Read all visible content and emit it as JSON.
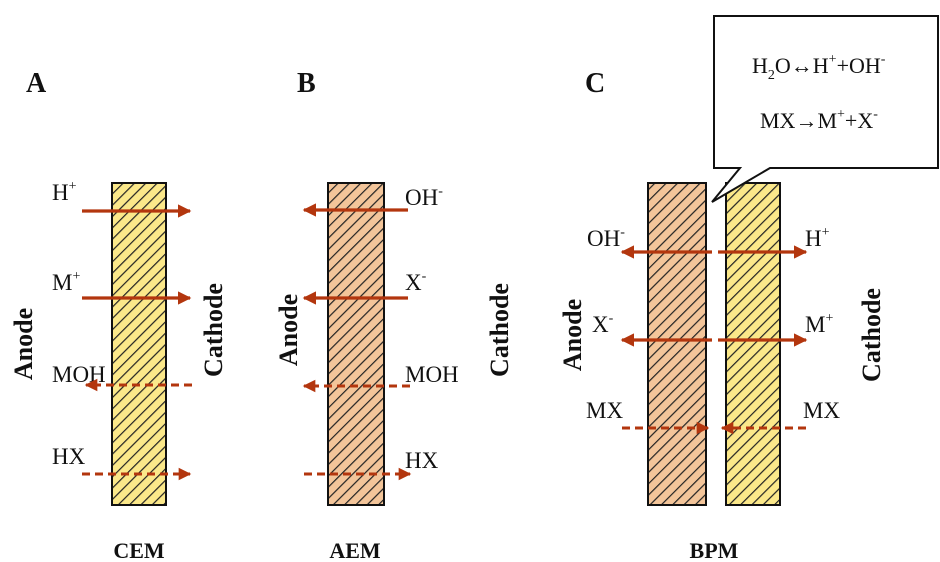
{
  "panels": {
    "a": {
      "letter": "A",
      "membrane": "CEM",
      "anode": "Anode",
      "cathode": "Cathode",
      "ions": {
        "h": {
          "base": "H",
          "sup": "+"
        },
        "m": {
          "base": "M",
          "sup": "+"
        },
        "moh": {
          "base": "MOH",
          "sup": ""
        },
        "hx": {
          "base": "HX",
          "sup": ""
        }
      }
    },
    "b": {
      "letter": "B",
      "membrane": "AEM",
      "anode": "Anode",
      "cathode": "Cathode",
      "ions": {
        "oh": {
          "base": "OH",
          "sup": "-"
        },
        "x": {
          "base": "X",
          "sup": "-"
        },
        "moh": {
          "base": "MOH",
          "sup": ""
        },
        "hx": {
          "base": "HX",
          "sup": ""
        }
      }
    },
    "c": {
      "letter": "C",
      "membrane": "BPM",
      "anode": "Anode",
      "cathode": "Cathode",
      "ions": {
        "oh": {
          "base": "OH",
          "sup": "-"
        },
        "h": {
          "base": "H",
          "sup": "+"
        },
        "x": {
          "base": "X",
          "sup": "-"
        },
        "m": {
          "base": "M",
          "sup": "+"
        },
        "mx_left": {
          "base": "MX",
          "sup": ""
        },
        "mx_right": {
          "base": "MX",
          "sup": ""
        }
      },
      "callout": {
        "eq1": {
          "h": "H",
          "sub2": "2",
          "o": "O↔H",
          "plus": "+",
          "mid": "+OH",
          "minus": "-"
        },
        "eq2": {
          "mx": "MX→M",
          "plus": "+",
          "mid": "+X",
          "minus": "-"
        }
      }
    }
  },
  "colors": {
    "cation_membrane": "#fbe88a",
    "anion_membrane": "#f3c59a",
    "arrow": "#b3360e"
  }
}
